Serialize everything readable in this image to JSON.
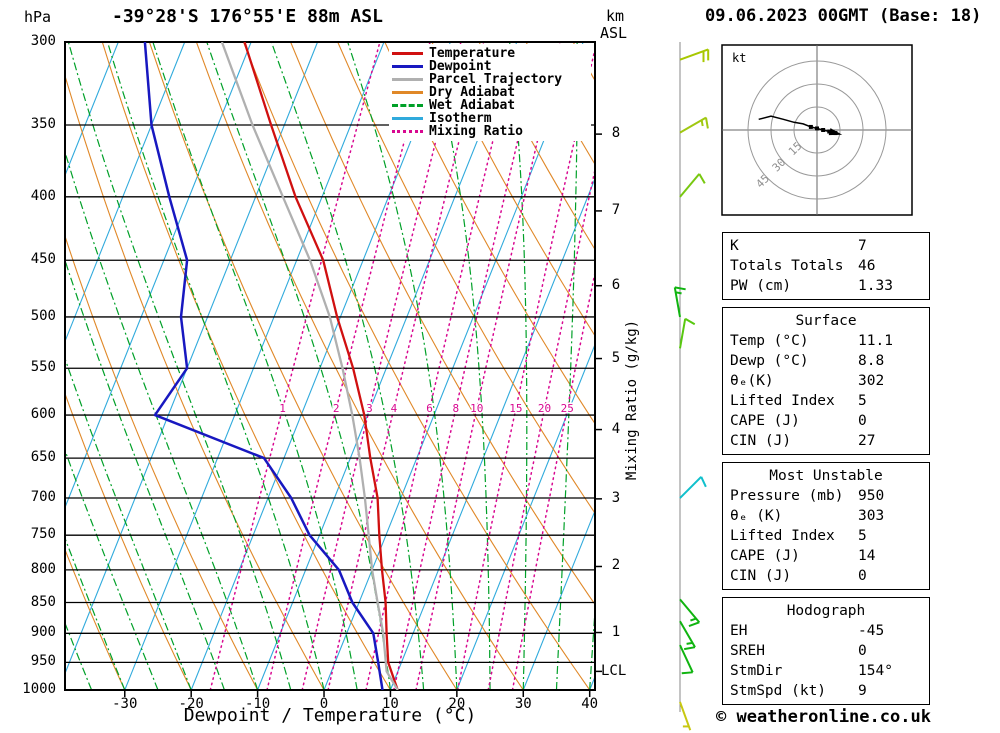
{
  "header": {
    "pressure_unit": "hPa",
    "title": "-39°28'S 176°55'E 88m ASL",
    "altitude_unit_line1": "km",
    "altitude_unit_line2": "ASL",
    "datetime": "09.06.2023 00GMT (Base: 18)"
  },
  "footer": {
    "xlabel": "Dewpoint / Temperature (°C)",
    "copyright": "© weatheronline.co.uk"
  },
  "colors": {
    "temperature": "#d01010",
    "dewpoint": "#1818c0",
    "parcel": "#b0b0b0",
    "dry_adiabat": "#e08828",
    "wet_adiabat": "#00a028",
    "isotherm": "#30aadc",
    "mixing_ratio": "#d80890"
  },
  "legend": [
    {
      "label": "Temperature",
      "color": "#d01010",
      "style": "solid"
    },
    {
      "label": "Dewpoint",
      "color": "#1818c0",
      "style": "solid"
    },
    {
      "label": "Parcel Trajectory",
      "color": "#b0b0b0",
      "style": "solid"
    },
    {
      "label": "Dry Adiabat",
      "color": "#e08828",
      "style": "solid"
    },
    {
      "label": "Wet Adiabat",
      "color": "#00a028",
      "style": "dashed"
    },
    {
      "label": "Isotherm",
      "color": "#30aadc",
      "style": "solid"
    },
    {
      "label": "Mixing Ratio",
      "color": "#d80890",
      "style": "dotted"
    }
  ],
  "chart_data": {
    "type": "line",
    "subtype": "skew-t log-p sounding",
    "x_axis": {
      "label": "Dewpoint / Temperature (°C)",
      "unit": "°C",
      "ticks": [
        -30,
        -20,
        -10,
        0,
        10,
        20,
        30,
        40
      ],
      "range": [
        -39,
        40.8
      ]
    },
    "y_axis": {
      "label": "hPa",
      "unit": "hPa",
      "scale": "log",
      "ticks": [
        300,
        350,
        400,
        450,
        500,
        550,
        600,
        650,
        700,
        750,
        800,
        850,
        900,
        950,
        1000
      ],
      "range": [
        1000,
        300
      ]
    },
    "secondary_y_axis": {
      "unit": "km ASL",
      "ticks": [
        8,
        7,
        6,
        5,
        4,
        3,
        2,
        1
      ],
      "lcl_label": "LCL"
    },
    "lcl_pressure": 966,
    "right_axis_label": "Mixing Ratio (g/kg)",
    "mixing_ratio_lines": [
      1,
      2,
      3,
      4,
      6,
      8,
      10,
      15,
      20,
      25
    ],
    "skew": 0.4,
    "isotherm_step_c": 10,
    "dry_adiabat_step_c": 10,
    "wet_adiabat_step_c": 5,
    "series": [
      {
        "name": "Temperature",
        "color": "#d01010",
        "width": 2.3,
        "points": [
          [
            1000,
            11.1
          ],
          [
            950,
            8
          ],
          [
            900,
            6
          ],
          [
            850,
            4
          ],
          [
            800,
            1.5
          ],
          [
            750,
            -1
          ],
          [
            700,
            -3.5
          ],
          [
            650,
            -7
          ],
          [
            600,
            -10.5
          ],
          [
            550,
            -15
          ],
          [
            500,
            -20.5
          ],
          [
            450,
            -26
          ],
          [
            400,
            -34
          ],
          [
            350,
            -42
          ],
          [
            300,
            -51
          ]
        ]
      },
      {
        "name": "Dewpoint",
        "color": "#1818c0",
        "width": 2.5,
        "points": [
          [
            1000,
            8.8
          ],
          [
            950,
            6.5
          ],
          [
            900,
            4
          ],
          [
            850,
            -1
          ],
          [
            800,
            -5
          ],
          [
            750,
            -11.5
          ],
          [
            700,
            -16.5
          ],
          [
            650,
            -23
          ],
          [
            600,
            -42
          ],
          [
            550,
            -40
          ],
          [
            500,
            -44
          ],
          [
            450,
            -46.5
          ],
          [
            400,
            -53
          ],
          [
            350,
            -60
          ],
          [
            300,
            -66
          ]
        ]
      },
      {
        "name": "Parcel Trajectory",
        "color": "#b0b0b0",
        "width": 2.3,
        "points": [
          [
            1000,
            11.1
          ],
          [
            966,
            8.3
          ],
          [
            900,
            5.5
          ],
          [
            850,
            2.8
          ],
          [
            800,
            0
          ],
          [
            750,
            -2.6
          ],
          [
            700,
            -5.4
          ],
          [
            650,
            -8.6
          ],
          [
            600,
            -12.3
          ],
          [
            550,
            -16.6
          ],
          [
            500,
            -21.6
          ],
          [
            450,
            -28
          ],
          [
            400,
            -35.9
          ],
          [
            350,
            -44.8
          ],
          [
            300,
            -54.4
          ]
        ]
      }
    ],
    "surface_parcel": {
      "p": 1000,
      "t": 11.1,
      "td": 8.8
    },
    "wind_barbs": [
      {
        "p": 310,
        "dir": 70,
        "spd": 20,
        "color": "#a8c800"
      },
      {
        "p": 355,
        "dir": 60,
        "spd": 15,
        "color": "#a0c810"
      },
      {
        "p": 400,
        "dir": 40,
        "spd": 10,
        "color": "#78c810"
      },
      {
        "p": 500,
        "dir": 350,
        "spd": 15,
        "color": "#10b410"
      },
      {
        "p": 530,
        "dir": 10,
        "spd": 10,
        "color": "#58c810"
      },
      {
        "p": 700,
        "dir": 45,
        "spd": 10,
        "color": "#10c0cc"
      },
      {
        "p": 845,
        "dir": 140,
        "spd": 15,
        "color": "#10b410"
      },
      {
        "p": 880,
        "dir": 150,
        "spd": 15,
        "color": "#10b410"
      },
      {
        "p": 920,
        "dir": 155,
        "spd": 10,
        "color": "#10b410"
      },
      {
        "p": 1005,
        "dir": 160,
        "spd": 5,
        "color": "#c8c810"
      }
    ]
  },
  "hodograph": {
    "unit_label": "kt",
    "rings_kt": [
      15,
      30,
      45
    ],
    "trace_uv_kt": [
      [
        -38,
        7
      ],
      [
        -30,
        9
      ],
      [
        -22,
        7
      ],
      [
        -15,
        5
      ],
      [
        -9,
        4
      ],
      [
        -4,
        2
      ],
      [
        0,
        1
      ],
      [
        4,
        0
      ],
      [
        8,
        -1
      ],
      [
        12,
        -2
      ]
    ],
    "marker_count": 5
  },
  "panels": [
    {
      "rows": [
        [
          "K",
          "7"
        ],
        [
          "Totals Totals",
          "46"
        ],
        [
          "PW (cm)",
          "1.33"
        ]
      ]
    },
    {
      "title": "Surface",
      "rows": [
        [
          "Temp (°C)",
          "11.1"
        ],
        [
          "Dewp (°C)",
          "8.8"
        ],
        [
          "θₑ(K)",
          "302"
        ],
        [
          "Lifted Index",
          "5"
        ],
        [
          "CAPE (J)",
          "0"
        ],
        [
          "CIN (J)",
          "27"
        ]
      ]
    },
    {
      "title": "Most Unstable",
      "rows": [
        [
          "Pressure (mb)",
          "950"
        ],
        [
          "θₑ (K)",
          "303"
        ],
        [
          "Lifted Index",
          "5"
        ],
        [
          "CAPE (J)",
          "14"
        ],
        [
          "CIN (J)",
          "0"
        ]
      ]
    },
    {
      "title": "Hodograph",
      "rows": [
        [
          "EH",
          "-45"
        ],
        [
          "SREH",
          "0"
        ],
        [
          "StmDir",
          "154°"
        ],
        [
          "StmSpd (kt)",
          "9"
        ]
      ]
    }
  ]
}
